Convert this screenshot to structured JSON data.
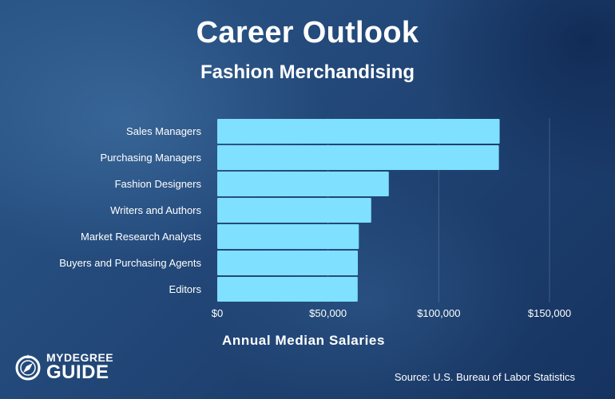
{
  "header": {
    "title": "Career Outlook",
    "subtitle": "Fashion Merchandising"
  },
  "chart_data": {
    "type": "bar",
    "orientation": "horizontal",
    "categories": [
      "Sales Managers",
      "Purchasing Managers",
      "Fashion Designers",
      "Writers and Authors",
      "Market Research Analysts",
      "Buyers and Purchasing Agents",
      "Editors"
    ],
    "values": [
      127490,
      127150,
      77450,
      69510,
      63920,
      63470,
      63400
    ],
    "xlabel": "Annual Median Salaries",
    "ylabel": "",
    "xlim": [
      0,
      150000
    ],
    "x_ticks": [
      0,
      50000,
      100000,
      150000
    ],
    "x_tick_labels": [
      "$0",
      "$50,000",
      "$100,000",
      "$150,000"
    ],
    "grid": "vertical",
    "bar_color": "#7fe0ff"
  },
  "footer": {
    "logo_top": "MYDEGREE",
    "logo_bottom": "GUIDE",
    "source": "Source: U.S. Bureau of Labor Statistics"
  }
}
